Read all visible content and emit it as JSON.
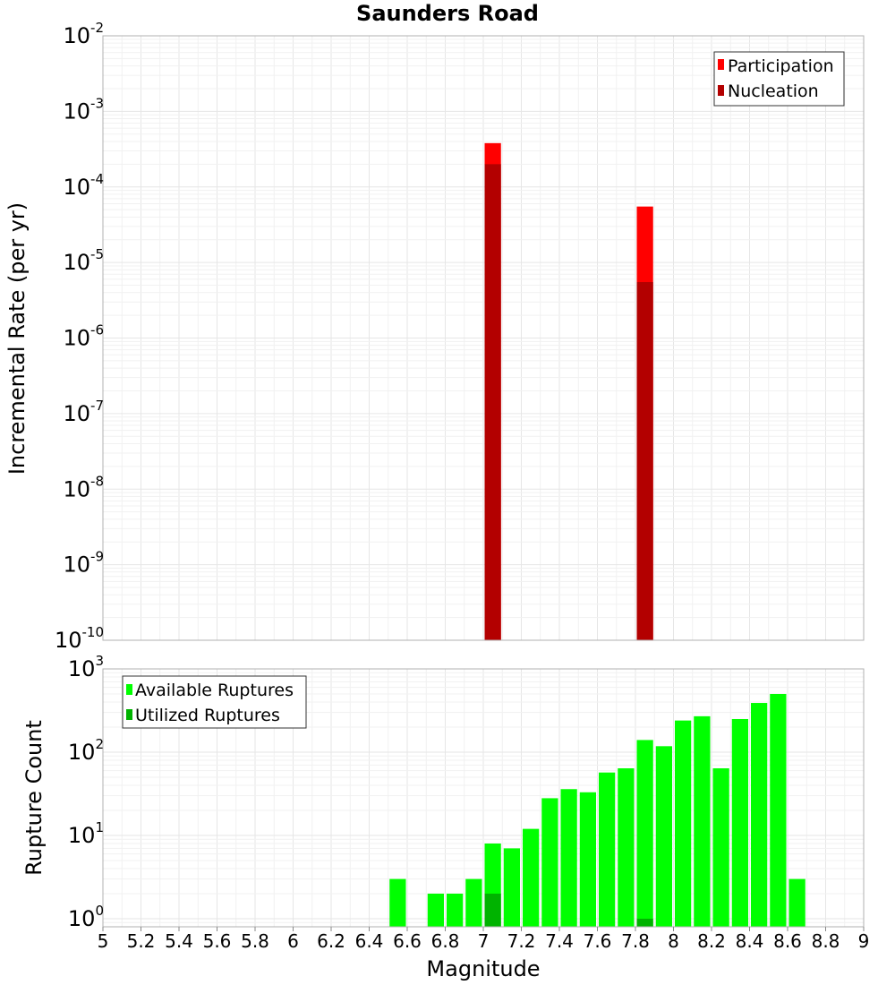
{
  "chart_data": [
    {
      "type": "bar",
      "title": "Saunders Road",
      "ylabel": "Incremental Rate (per yr)",
      "xlabel": "",
      "xlim": [
        5,
        9
      ],
      "ylim": [
        1e-10,
        0.01
      ],
      "yscale": "log",
      "ytick_bases": [
        "10",
        "10",
        "10",
        "10",
        "10",
        "10",
        "10",
        "10",
        "10"
      ],
      "ytick_exponents": [
        "-10",
        "-9",
        "-8",
        "-7",
        "-6",
        "-5",
        "-4",
        "-3",
        "-2"
      ],
      "ytick_values": [
        1e-10,
        1e-09,
        1e-08,
        1e-07,
        1e-06,
        1e-05,
        0.0001,
        0.001,
        0.01
      ],
      "grid": true,
      "legend_position": "top-right",
      "series": [
        {
          "name": "Participation",
          "color": "#ff0000",
          "points": [
            {
              "x": 7.05,
              "y": 0.00038
            },
            {
              "x": 7.85,
              "y": 5.5e-05
            }
          ]
        },
        {
          "name": "Nucleation",
          "color": "#b30000",
          "points": [
            {
              "x": 7.05,
              "y": 0.0002
            },
            {
              "x": 7.85,
              "y": 5.5e-06
            }
          ]
        }
      ]
    },
    {
      "type": "bar",
      "title": "",
      "ylabel": "Rupture Count",
      "xlabel": "Magnitude",
      "xlim": [
        5,
        9
      ],
      "ylim": [
        0.8,
        1000
      ],
      "yscale": "log",
      "ytick_bases": [
        "10",
        "10",
        "10",
        "10"
      ],
      "ytick_exponents": [
        "0",
        "1",
        "2",
        "3"
      ],
      "ytick_values": [
        1,
        10,
        100,
        1000
      ],
      "xticks": [
        "5",
        "5.2",
        "5.4",
        "5.6",
        "5.8",
        "6",
        "6.2",
        "6.4",
        "6.6",
        "6.8",
        "7",
        "7.2",
        "7.4",
        "7.6",
        "7.8",
        "8",
        "8.2",
        "8.4",
        "8.6",
        "8.8",
        "9"
      ],
      "xtick_values": [
        5,
        5.2,
        5.4,
        5.6,
        5.8,
        6,
        6.2,
        6.4,
        6.6,
        6.8,
        7,
        7.2,
        7.4,
        7.6,
        7.8,
        8,
        8.2,
        8.4,
        8.6,
        8.8,
        9
      ],
      "grid": true,
      "legend_position": "top-left",
      "series": [
        {
          "name": "Available Ruptures",
          "color": "#00ff00",
          "points": [
            {
              "x": 6.55,
              "y": 3
            },
            {
              "x": 6.75,
              "y": 2
            },
            {
              "x": 6.85,
              "y": 2
            },
            {
              "x": 6.95,
              "y": 3
            },
            {
              "x": 7.05,
              "y": 8
            },
            {
              "x": 7.15,
              "y": 7
            },
            {
              "x": 7.25,
              "y": 12
            },
            {
              "x": 7.35,
              "y": 28
            },
            {
              "x": 7.45,
              "y": 36
            },
            {
              "x": 7.55,
              "y": 33
            },
            {
              "x": 7.65,
              "y": 57
            },
            {
              "x": 7.75,
              "y": 64
            },
            {
              "x": 7.85,
              "y": 140
            },
            {
              "x": 7.95,
              "y": 118
            },
            {
              "x": 8.05,
              "y": 240
            },
            {
              "x": 8.15,
              "y": 270
            },
            {
              "x": 8.25,
              "y": 64
            },
            {
              "x": 8.35,
              "y": 250
            },
            {
              "x": 8.45,
              "y": 390
            },
            {
              "x": 8.55,
              "y": 500
            },
            {
              "x": 8.65,
              "y": 3
            }
          ]
        },
        {
          "name": "Utilized Ruptures",
          "color": "#00b300",
          "points": [
            {
              "x": 7.05,
              "y": 2
            },
            {
              "x": 7.85,
              "y": 1
            }
          ]
        }
      ]
    }
  ]
}
